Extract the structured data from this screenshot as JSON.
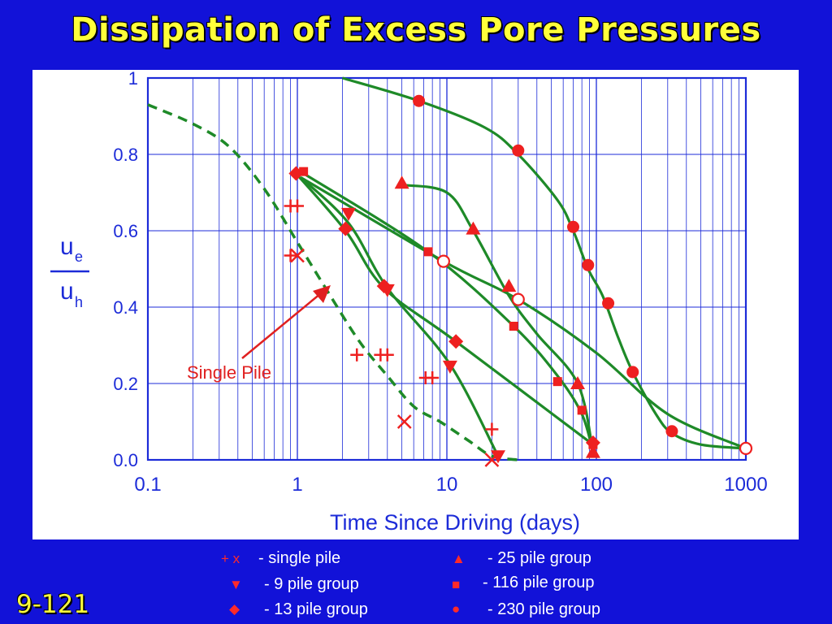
{
  "title": "Dissipation of Excess Pore Pressures",
  "slide_number": "9-121",
  "colors": {
    "background": "#1212d8",
    "title": "#ffff3a",
    "axis": "#1c2bd8",
    "curve": "#1e8a28",
    "marker": "#ee2020"
  },
  "chart_data": {
    "type": "scatter",
    "xlabel": "Time Since Driving (days)",
    "ylabel_numerator": "u",
    "ylabel_numerator_sub": "e",
    "ylabel_denominator": "u",
    "ylabel_denominator_sub": "h",
    "x_scale": "log",
    "xlim": [
      0.1,
      1000
    ],
    "ylim": [
      0,
      1
    ],
    "x_ticks": [
      "0.1",
      "1",
      "10",
      "100",
      "1000"
    ],
    "y_ticks": [
      "0.0",
      "0.2",
      "0.4",
      "0.6",
      "0.8",
      "1"
    ],
    "grid": true,
    "annotation": "Single Pile",
    "single_pile_dashed_curve": [
      [
        0.1,
        0.93
      ],
      [
        0.2,
        0.88
      ],
      [
        0.35,
        0.82
      ],
      [
        0.6,
        0.71
      ],
      [
        1.0,
        0.57
      ],
      [
        1.6,
        0.44
      ],
      [
        2.6,
        0.31
      ],
      [
        4,
        0.22
      ],
      [
        6,
        0.14
      ],
      [
        9,
        0.1
      ],
      [
        14,
        0.05
      ],
      [
        20,
        0.01
      ],
      [
        30,
        0.0
      ]
    ],
    "series": [
      {
        "legend": "- single pile",
        "marker": "plus",
        "points": [
          [
            0.9,
            0.665
          ],
          [
            1.0,
            0.665
          ],
          [
            0.9,
            0.535
          ],
          [
            2.5,
            0.275
          ],
          [
            3.6,
            0.275
          ],
          [
            4.0,
            0.275
          ],
          [
            7.2,
            0.215
          ],
          [
            8.0,
            0.215
          ],
          [
            20,
            0.08
          ]
        ]
      },
      {
        "legend": "- single pile",
        "marker": "x",
        "points": [
          [
            1.0,
            0.535
          ],
          [
            5.2,
            0.1
          ],
          [
            20,
            0.0
          ]
        ]
      },
      {
        "legend": "- 9 pile group",
        "marker": "triangle-down",
        "points": [
          [
            2.2,
            0.645
          ],
          [
            4.0,
            0.445
          ],
          [
            10.5,
            0.245
          ],
          [
            22,
            0.01
          ]
        ],
        "curve": [
          [
            1.05,
            0.74
          ],
          [
            2.2,
            0.62
          ],
          [
            4.0,
            0.45
          ],
          [
            10.5,
            0.25
          ],
          [
            22,
            0.01
          ]
        ]
      },
      {
        "legend": "- 13 pile group",
        "marker": "diamond",
        "points": [
          [
            0.98,
            0.75
          ],
          [
            2.1,
            0.605
          ],
          [
            3.8,
            0.455
          ],
          [
            11.5,
            0.31
          ],
          [
            95,
            0.045
          ]
        ],
        "curve": [
          [
            0.98,
            0.75
          ],
          [
            2.1,
            0.6
          ],
          [
            3.8,
            0.45
          ],
          [
            11.5,
            0.31
          ],
          [
            95,
            0.04
          ]
        ]
      },
      {
        "legend": "- 25 pile group",
        "marker": "triangle",
        "points": [
          [
            5.0,
            0.725
          ],
          [
            15,
            0.605
          ],
          [
            26,
            0.455
          ],
          [
            75,
            0.2
          ],
          [
            95,
            0.02
          ]
        ],
        "curve": [
          [
            5.0,
            0.72
          ],
          [
            10,
            0.7
          ],
          [
            15,
            0.6
          ],
          [
            26,
            0.43
          ],
          [
            40,
            0.33
          ],
          [
            75,
            0.2
          ],
          [
            95,
            0.02
          ]
        ]
      },
      {
        "legend": "- 116 pile group",
        "marker": "square",
        "points": [
          [
            1.1,
            0.755
          ],
          [
            7.5,
            0.545
          ],
          [
            28,
            0.35
          ],
          [
            55,
            0.205
          ],
          [
            80,
            0.13
          ],
          [
            95,
            0.04
          ]
        ],
        "curve": [
          [
            1.1,
            0.75
          ],
          [
            7.5,
            0.545
          ],
          [
            28,
            0.35
          ],
          [
            55,
            0.22
          ],
          [
            80,
            0.12
          ],
          [
            95,
            0.02
          ]
        ]
      },
      {
        "legend": "- 230 pile group",
        "marker": "circle",
        "points": [
          [
            6.5,
            0.94
          ],
          [
            30,
            0.81
          ],
          [
            70,
            0.61
          ],
          [
            88,
            0.51
          ],
          [
            120,
            0.41
          ],
          [
            175,
            0.23
          ],
          [
            320,
            0.075
          ]
        ],
        "curve": [
          [
            2.0,
            1.0
          ],
          [
            6.5,
            0.94
          ],
          [
            18,
            0.87
          ],
          [
            30,
            0.8
          ],
          [
            55,
            0.68
          ],
          [
            70,
            0.6
          ],
          [
            88,
            0.5
          ],
          [
            110,
            0.43
          ],
          [
            140,
            0.32
          ],
          [
            175,
            0.23
          ],
          [
            250,
            0.12
          ],
          [
            320,
            0.07
          ],
          [
            500,
            0.04
          ],
          [
            1000,
            0.03
          ]
        ]
      },
      {
        "legend": "- 230 pile group",
        "marker": "open-circle",
        "points": [
          [
            9.5,
            0.52
          ],
          [
            30,
            0.42
          ],
          [
            1000,
            0.03
          ]
        ],
        "curve": [
          [
            1.05,
            0.74
          ],
          [
            9.5,
            0.52
          ],
          [
            30,
            0.42
          ],
          [
            100,
            0.28
          ],
          [
            300,
            0.12
          ],
          [
            1000,
            0.03
          ]
        ]
      }
    ]
  },
  "legend": {
    "items": [
      {
        "symbol": "+ x",
        "label": "- single pile"
      },
      {
        "symbol": "▼",
        "label": "- 9 pile group"
      },
      {
        "symbol": "◆",
        "label": "- 13 pile group"
      },
      {
        "symbol": "▲",
        "label": "- 25 pile group"
      },
      {
        "symbol": "■",
        "label": "- 116 pile group"
      },
      {
        "symbol": "●",
        "label": "- 230 pile group"
      }
    ]
  }
}
